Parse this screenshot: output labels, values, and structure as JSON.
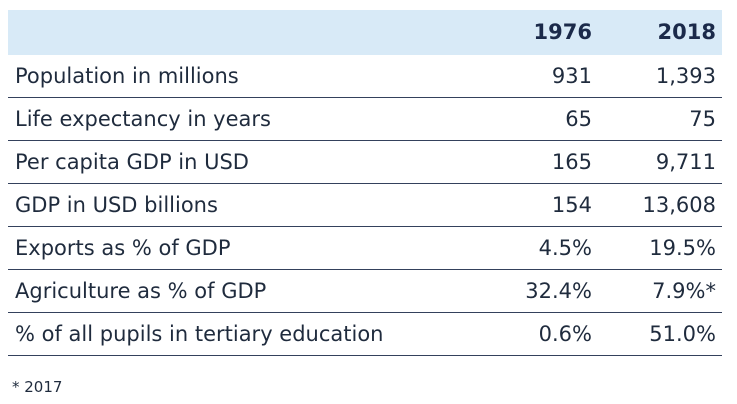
{
  "table": {
    "columns": [
      "1976",
      "2018"
    ],
    "rows": [
      {
        "label": "Population in millions",
        "values": [
          "931",
          "1,393"
        ]
      },
      {
        "label": "Life expectancy in years",
        "values": [
          "65",
          "75"
        ]
      },
      {
        "label": "Per capita GDP in USD",
        "values": [
          "165",
          "9,711"
        ]
      },
      {
        "label": "GDP in USD billions",
        "values": [
          "154",
          "13,608"
        ]
      },
      {
        "label": "Exports as % of GDP",
        "values": [
          "4.5%",
          "19.5%"
        ]
      },
      {
        "label": "Agriculture as % of GDP",
        "values": [
          "32.4%",
          "7.9%*"
        ]
      },
      {
        "label": "% of all pupils in tertiary education",
        "values": [
          "0.6%",
          "51.0%"
        ]
      }
    ]
  },
  "footnote": "* 2017"
}
